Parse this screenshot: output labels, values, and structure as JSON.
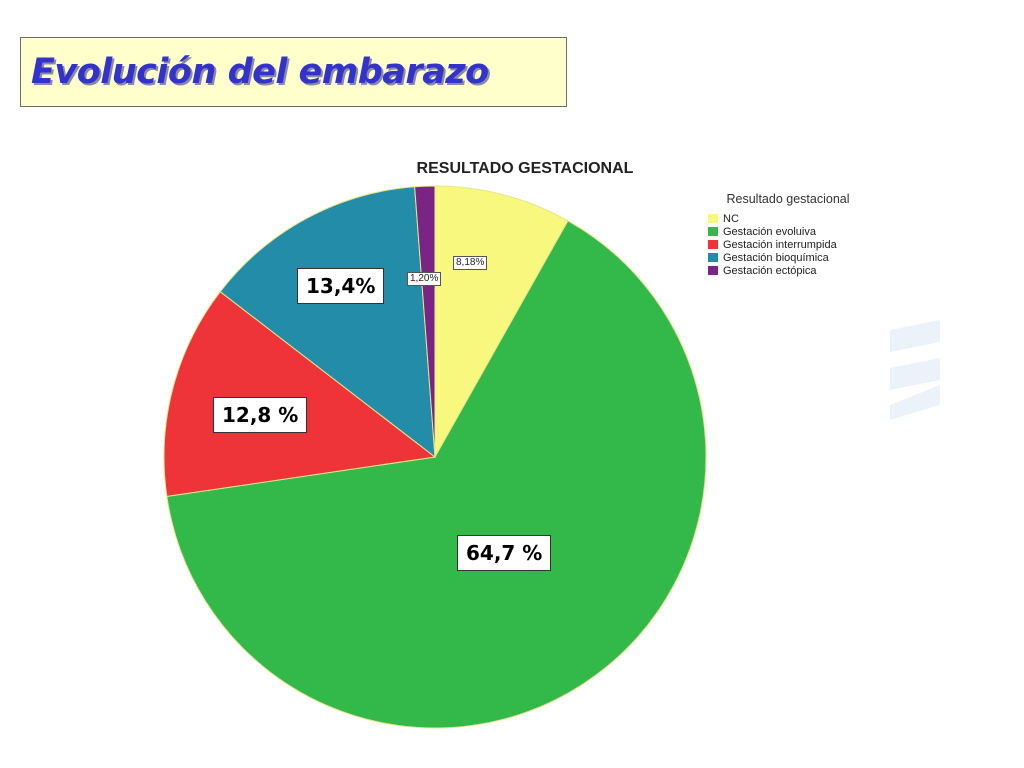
{
  "slide": {
    "title": "Evolución del embarazo"
  },
  "chart_data": {
    "type": "pie",
    "title": "RESULTADO GESTACIONAL",
    "legend_title": "Resultado gestacional",
    "legend_placement": "right",
    "slices": [
      {
        "name": "NC",
        "value": 8.18,
        "color": "#f8f87e"
      },
      {
        "name": "Gestación evoluiva",
        "value": 64.7,
        "color": "#33b84a"
      },
      {
        "name": "Gestación interrumpida",
        "value": 12.8,
        "color": "#ee3339"
      },
      {
        "name": "Gestación bioquímica",
        "value": 13.4,
        "color": "#238ca8"
      },
      {
        "name": "Gestación ectópica",
        "value": 1.2,
        "color": "#7a2585"
      }
    ],
    "labels": {
      "nc": "8,18%",
      "evolutiva": "64,7 %",
      "interrumpida": "12,8 %",
      "bioquimica": "13,4%",
      "ectopica": "1,20%"
    }
  }
}
